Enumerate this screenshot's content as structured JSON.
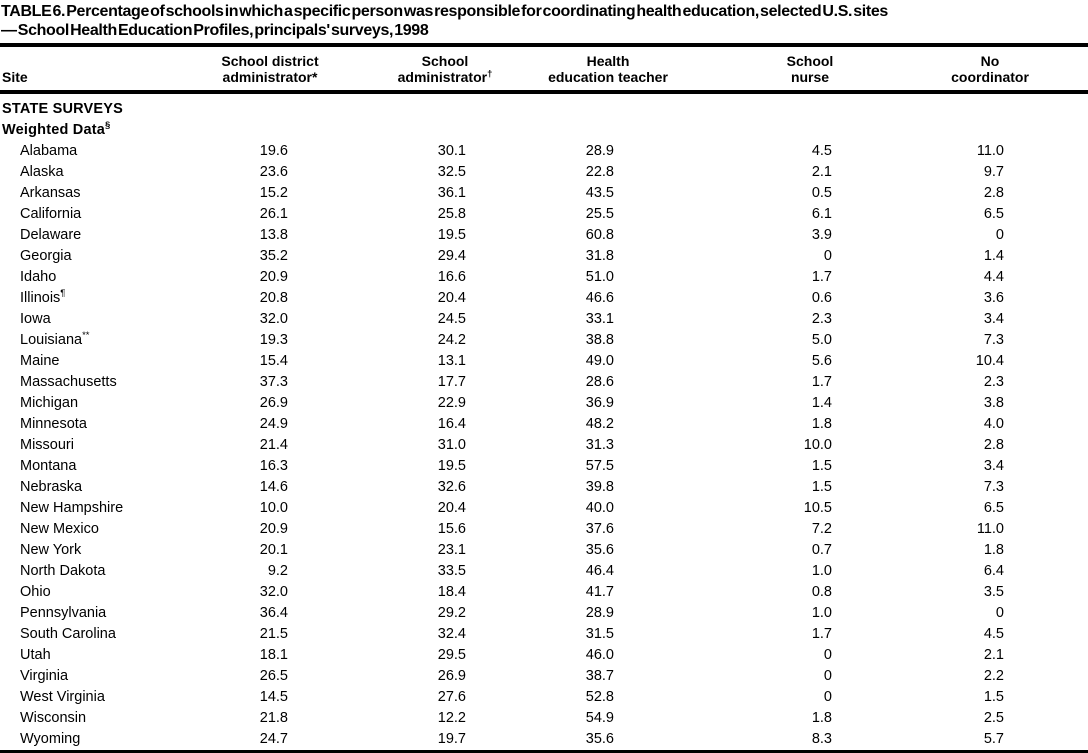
{
  "table": {
    "title_line1": "TABLE 6. Percentage of schools in which a specific person was responsible for coordinating health education, selected U.S. sites",
    "title_line2": "— School Health Education Profiles, principals' surveys, 1998",
    "columns": [
      {
        "line1": "",
        "line2": "Site",
        "sup": ""
      },
      {
        "line1": "School district",
        "line2": "administrator*",
        "sup": ""
      },
      {
        "line1": "School",
        "line2": "administrator",
        "sup": "†"
      },
      {
        "line1": "Health",
        "line2": "education teacher",
        "sup": ""
      },
      {
        "line1": "School",
        "line2": "nurse",
        "sup": ""
      },
      {
        "line1": "No",
        "line2": "coordinator",
        "sup": ""
      }
    ],
    "rows": [
      {
        "type": "group",
        "site": "STATE SURVEYS",
        "site_sup": "",
        "values": [
          "",
          "",
          "",
          "",
          ""
        ]
      },
      {
        "type": "group",
        "site": "Weighted Data",
        "site_sup": "§",
        "values": [
          "",
          "",
          "",
          "",
          ""
        ]
      },
      {
        "type": "state",
        "site": "Alabama",
        "site_sup": "",
        "values": [
          "19.6",
          "30.1",
          "28.9",
          "4.5",
          "11.0"
        ]
      },
      {
        "type": "state",
        "site": "Alaska",
        "site_sup": "",
        "values": [
          "23.6",
          "32.5",
          "22.8",
          "2.1",
          "9.7"
        ]
      },
      {
        "type": "state",
        "site": "Arkansas",
        "site_sup": "",
        "values": [
          "15.2",
          "36.1",
          "43.5",
          "0.5",
          "2.8"
        ]
      },
      {
        "type": "state",
        "site": "California",
        "site_sup": "",
        "values": [
          "26.1",
          "25.8",
          "25.5",
          "6.1",
          "6.5"
        ]
      },
      {
        "type": "state",
        "site": "Delaware",
        "site_sup": "",
        "values": [
          "13.8",
          "19.5",
          "60.8",
          "3.9",
          "0"
        ]
      },
      {
        "type": "state",
        "site": "Georgia",
        "site_sup": "",
        "values": [
          "35.2",
          "29.4",
          "31.8",
          "0",
          "1.4"
        ]
      },
      {
        "type": "state",
        "site": "Idaho",
        "site_sup": "",
        "values": [
          "20.9",
          "16.6",
          "51.0",
          "1.7",
          "4.4"
        ]
      },
      {
        "type": "state",
        "site": "Illinois",
        "site_sup": "¶",
        "values": [
          "20.8",
          "20.4",
          "46.6",
          "0.6",
          "3.6"
        ]
      },
      {
        "type": "state",
        "site": "Iowa",
        "site_sup": "",
        "values": [
          "32.0",
          "24.5",
          "33.1",
          "2.3",
          "3.4"
        ]
      },
      {
        "type": "state",
        "site": "Louisiana",
        "site_sup": "**",
        "values": [
          "19.3",
          "24.2",
          "38.8",
          "5.0",
          "7.3"
        ]
      },
      {
        "type": "state",
        "site": "Maine",
        "site_sup": "",
        "values": [
          "15.4",
          "13.1",
          "49.0",
          "5.6",
          "10.4"
        ]
      },
      {
        "type": "state",
        "site": "Massachusetts",
        "site_sup": "",
        "values": [
          "37.3",
          "17.7",
          "28.6",
          "1.7",
          "2.3"
        ]
      },
      {
        "type": "state",
        "site": "Michigan",
        "site_sup": "",
        "values": [
          "26.9",
          "22.9",
          "36.9",
          "1.4",
          "3.8"
        ]
      },
      {
        "type": "state",
        "site": "Minnesota",
        "site_sup": "",
        "values": [
          "24.9",
          "16.4",
          "48.2",
          "1.8",
          "4.0"
        ]
      },
      {
        "type": "state",
        "site": "Missouri",
        "site_sup": "",
        "values": [
          "21.4",
          "31.0",
          "31.3",
          "10.0",
          "2.8"
        ]
      },
      {
        "type": "state",
        "site": "Montana",
        "site_sup": "",
        "values": [
          "16.3",
          "19.5",
          "57.5",
          "1.5",
          "3.4"
        ]
      },
      {
        "type": "state",
        "site": "Nebraska",
        "site_sup": "",
        "values": [
          "14.6",
          "32.6",
          "39.8",
          "1.5",
          "7.3"
        ]
      },
      {
        "type": "state",
        "site": "New Hampshire",
        "site_sup": "",
        "values": [
          "10.0",
          "20.4",
          "40.0",
          "10.5",
          "6.5"
        ]
      },
      {
        "type": "state",
        "site": "New Mexico",
        "site_sup": "",
        "values": [
          "20.9",
          "15.6",
          "37.6",
          "7.2",
          "11.0"
        ]
      },
      {
        "type": "state",
        "site": "New York",
        "site_sup": "",
        "values": [
          "20.1",
          "23.1",
          "35.6",
          "0.7",
          "1.8"
        ]
      },
      {
        "type": "state",
        "site": "North Dakota",
        "site_sup": "",
        "values": [
          "9.2",
          "33.5",
          "46.4",
          "1.0",
          "6.4"
        ]
      },
      {
        "type": "state",
        "site": "Ohio",
        "site_sup": "",
        "values": [
          "32.0",
          "18.4",
          "41.7",
          "0.8",
          "3.5"
        ]
      },
      {
        "type": "state",
        "site": "Pennsylvania",
        "site_sup": "",
        "values": [
          "36.4",
          "29.2",
          "28.9",
          "1.0",
          "0"
        ]
      },
      {
        "type": "state",
        "site": "South Carolina",
        "site_sup": "",
        "values": [
          "21.5",
          "32.4",
          "31.5",
          "1.7",
          "4.5"
        ]
      },
      {
        "type": "state",
        "site": "Utah",
        "site_sup": "",
        "values": [
          "18.1",
          "29.5",
          "46.0",
          "0",
          "2.1"
        ]
      },
      {
        "type": "state",
        "site": "Virginia",
        "site_sup": "",
        "values": [
          "26.5",
          "26.9",
          "38.7",
          "0",
          "2.2"
        ]
      },
      {
        "type": "state",
        "site": "West Virginia",
        "site_sup": "",
        "values": [
          "14.5",
          "27.6",
          "52.8",
          "0",
          "1.5"
        ]
      },
      {
        "type": "state",
        "site": "Wisconsin",
        "site_sup": "",
        "values": [
          "21.8",
          "12.2",
          "54.9",
          "1.8",
          "2.5"
        ]
      },
      {
        "type": "state",
        "site": "Wyoming",
        "site_sup": "",
        "values": [
          "24.7",
          "19.7",
          "35.6",
          "8.3",
          "5.7"
        ]
      }
    ]
  }
}
